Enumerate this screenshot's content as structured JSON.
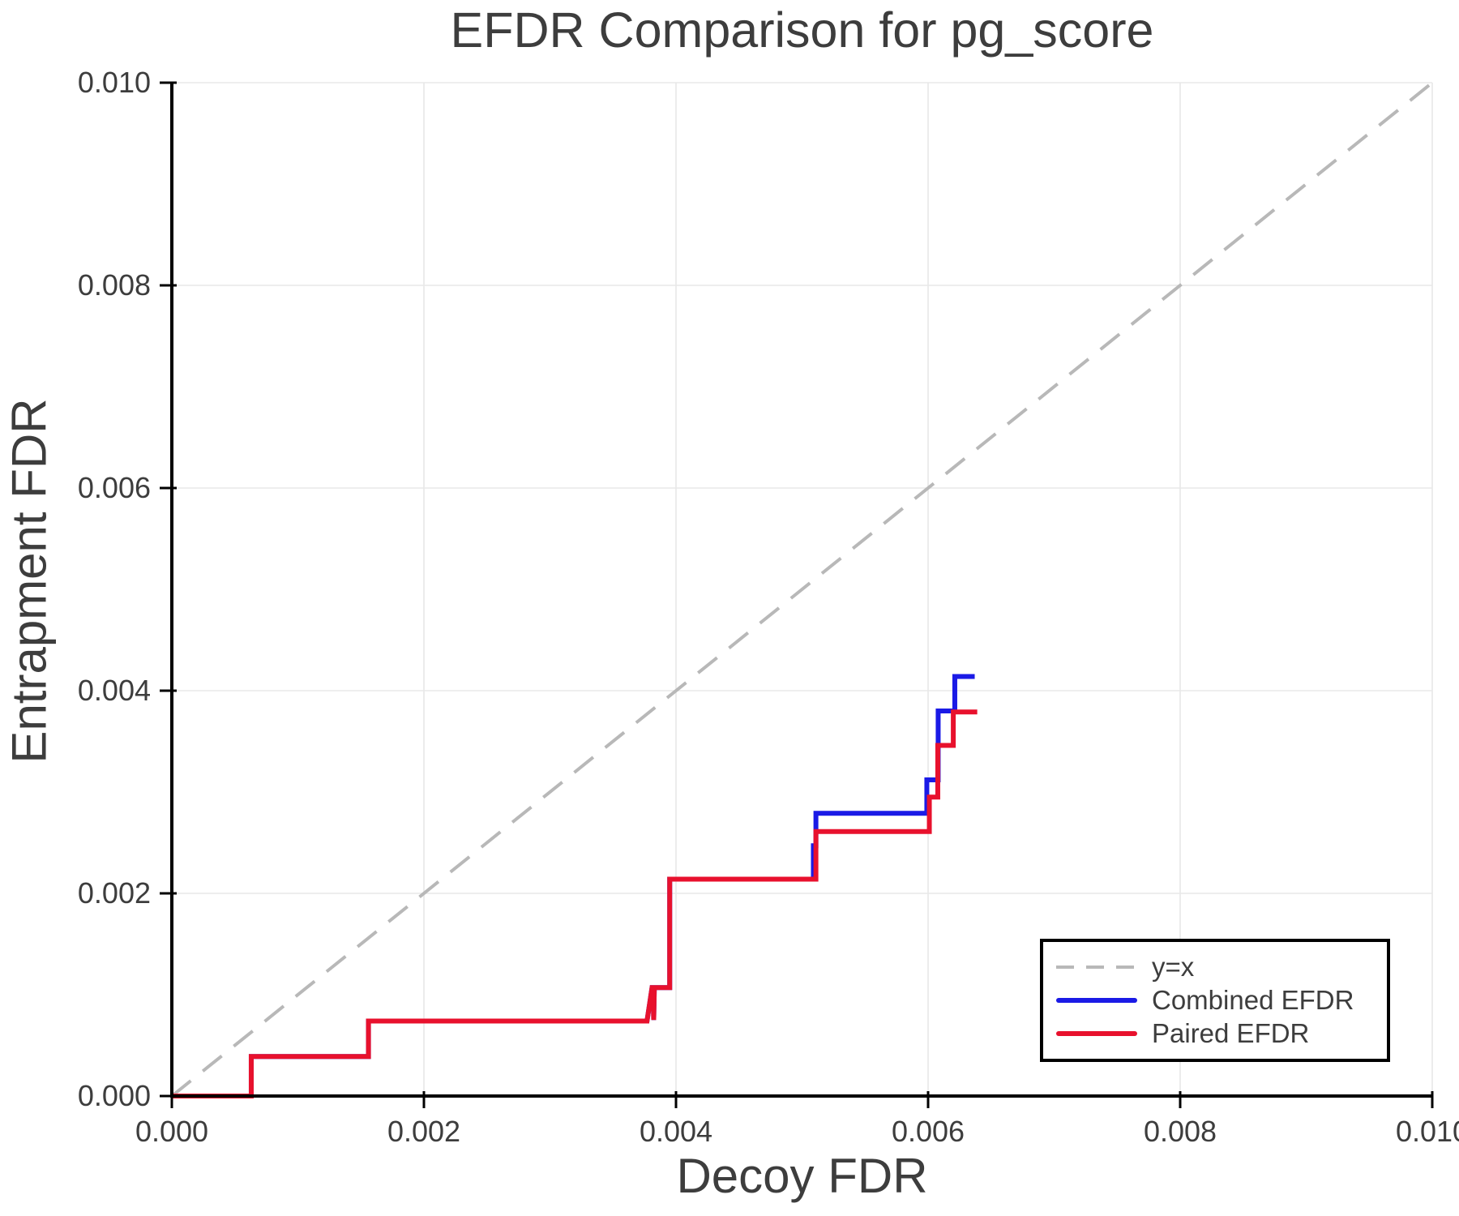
{
  "figure": {
    "background": "#ffffff",
    "text_color": "#3d3d3d",
    "spine_color": "#000000",
    "grid_color": "#e8e8e8"
  },
  "chart_data": {
    "type": "line",
    "title": "EFDR Comparison for pg_score",
    "x_axis": {
      "label": "Decoy FDR",
      "range": [
        0.0,
        0.01
      ],
      "ticks": [
        {
          "value": 0.0,
          "label": "0.000"
        },
        {
          "value": 0.002,
          "label": "0.002"
        },
        {
          "value": 0.004,
          "label": "0.004"
        },
        {
          "value": 0.006,
          "label": "0.006"
        },
        {
          "value": 0.008,
          "label": "0.008"
        },
        {
          "value": 0.01,
          "label": "0.010"
        }
      ]
    },
    "y_axis": {
      "label": "Entrapment FDR",
      "range": [
        0.0,
        0.01
      ],
      "ticks": [
        {
          "value": 0.0,
          "label": "0.000"
        },
        {
          "value": 0.002,
          "label": "0.002"
        },
        {
          "value": 0.004,
          "label": "0.004"
        },
        {
          "value": 0.006,
          "label": "0.006"
        },
        {
          "value": 0.008,
          "label": "0.008"
        },
        {
          "value": 0.01,
          "label": "0.010"
        }
      ]
    },
    "grid": true,
    "legend_position": "bottom-right",
    "series": [
      {
        "name": "y=x",
        "color": "#b8b8b8",
        "style": "dashed",
        "width": 4,
        "points": [
          [
            0.0,
            0.0
          ],
          [
            0.01,
            0.01
          ]
        ]
      },
      {
        "name": "Combined EFDR",
        "color": "#1a1ae6",
        "style": "solid",
        "width": 6,
        "points": [
          [
            0.0,
            0.0
          ],
          [
            0.00063,
            0.0
          ],
          [
            0.00063,
            0.00039
          ],
          [
            0.00156,
            0.00039
          ],
          [
            0.00156,
            0.00074
          ],
          [
            0.00377,
            0.00074
          ],
          [
            0.00381,
            0.00107
          ],
          [
            0.003818,
            0.00107
          ],
          [
            0.003823,
            0.00075
          ],
          [
            0.003828,
            0.00107
          ],
          [
            0.00395,
            0.00107
          ],
          [
            0.00395,
            0.00214
          ],
          [
            0.00509,
            0.00214
          ],
          [
            0.00509,
            0.00247
          ],
          [
            0.00511,
            0.00247
          ],
          [
            0.00511,
            0.00279
          ],
          [
            0.00599,
            0.00279
          ],
          [
            0.00599,
            0.00312
          ],
          [
            0.00608,
            0.00312
          ],
          [
            0.00608,
            0.0038
          ],
          [
            0.006212,
            0.0038
          ],
          [
            0.006212,
            0.00414
          ],
          [
            0.00637,
            0.00414
          ]
        ]
      },
      {
        "name": "Paired EFDR",
        "color": "#e8112d",
        "style": "solid",
        "width": 6,
        "points": [
          [
            0.0,
            0.0
          ],
          [
            0.00063,
            0.0
          ],
          [
            0.00063,
            0.00039
          ],
          [
            0.00156,
            0.00039
          ],
          [
            0.00156,
            0.00074
          ],
          [
            0.00377,
            0.00074
          ],
          [
            0.00381,
            0.00107
          ],
          [
            0.003818,
            0.00107
          ],
          [
            0.003823,
            0.00075
          ],
          [
            0.003828,
            0.00107
          ],
          [
            0.00395,
            0.00107
          ],
          [
            0.00395,
            0.00214
          ],
          [
            0.00511,
            0.00214
          ],
          [
            0.00511,
            0.00261
          ],
          [
            0.00601,
            0.00261
          ],
          [
            0.00601,
            0.00295
          ],
          [
            0.006077,
            0.00295
          ],
          [
            0.006077,
            0.00346
          ],
          [
            0.0062,
            0.00346
          ],
          [
            0.0062,
            0.00379
          ],
          [
            0.00639,
            0.00379
          ]
        ]
      }
    ]
  }
}
